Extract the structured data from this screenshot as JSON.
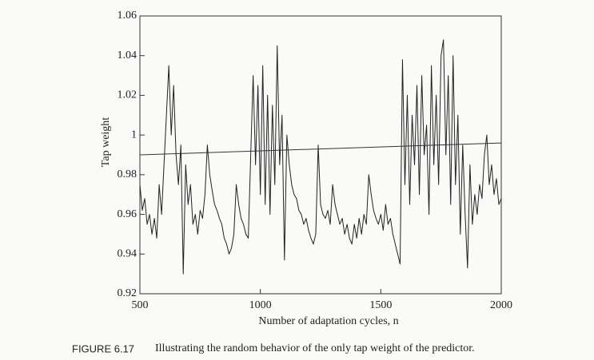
{
  "chart_data": {
    "type": "line",
    "xlabel": "Number of adaptation cycles, n",
    "ylabel": "Tap weight",
    "caption_label": "FIGURE 6.17",
    "caption": "Illustrating the random behavior of the only tap weight of the predictor.",
    "x": [
      500,
      510,
      520,
      530,
      540,
      550,
      560,
      570,
      580,
      590,
      600,
      610,
      620,
      630,
      640,
      650,
      660,
      670,
      680,
      690,
      700,
      710,
      720,
      730,
      740,
      750,
      760,
      770,
      780,
      790,
      800,
      810,
      820,
      830,
      840,
      850,
      860,
      870,
      880,
      890,
      900,
      910,
      920,
      930,
      940,
      950,
      960,
      970,
      980,
      990,
      1000,
      1010,
      1020,
      1030,
      1040,
      1050,
      1060,
      1070,
      1080,
      1090,
      1100,
      1110,
      1120,
      1130,
      1140,
      1150,
      1160,
      1170,
      1180,
      1190,
      1200,
      1210,
      1220,
      1230,
      1240,
      1250,
      1260,
      1270,
      1280,
      1290,
      1300,
      1310,
      1320,
      1330,
      1340,
      1350,
      1360,
      1370,
      1380,
      1390,
      1400,
      1410,
      1420,
      1430,
      1440,
      1450,
      1460,
      1470,
      1480,
      1490,
      1500,
      1510,
      1520,
      1530,
      1540,
      1550,
      1560,
      1570,
      1580,
      1590,
      1600,
      1610,
      1620,
      1630,
      1640,
      1650,
      1660,
      1670,
      1680,
      1690,
      1700,
      1710,
      1720,
      1730,
      1740,
      1750,
      1760,
      1770,
      1780,
      1790,
      1800,
      1810,
      1820,
      1830,
      1840,
      1850,
      1860,
      1870,
      1880,
      1890,
      1900,
      1910,
      1920,
      1930,
      1940,
      1950,
      1960,
      1970,
      1980,
      1990,
      2000
    ],
    "series": [
      {
        "color": "#222222",
        "values": [
          0.975,
          0.962,
          0.968,
          0.955,
          0.96,
          0.95,
          0.958,
          0.948,
          0.975,
          0.96,
          0.985,
          1.01,
          1.035,
          1.0,
          1.025,
          0.99,
          0.975,
          0.995,
          0.93,
          0.985,
          0.965,
          0.975,
          0.955,
          0.96,
          0.95,
          0.962,
          0.958,
          0.97,
          0.995,
          0.98,
          0.972,
          0.965,
          0.962,
          0.958,
          0.955,
          0.948,
          0.945,
          0.94,
          0.943,
          0.95,
          0.975,
          0.965,
          0.958,
          0.955,
          0.95,
          0.948,
          0.99,
          1.03,
          0.985,
          1.025,
          0.97,
          1.035,
          0.965,
          1.02,
          0.96,
          1.015,
          0.975,
          1.045,
          0.985,
          1.01,
          0.937,
          1.0,
          0.985,
          0.975,
          0.97,
          0.968,
          0.962,
          0.96,
          0.955,
          0.958,
          0.952,
          0.948,
          0.945,
          0.95,
          0.995,
          0.965,
          0.96,
          0.958,
          0.962,
          0.955,
          0.975,
          0.965,
          0.96,
          0.955,
          0.958,
          0.95,
          0.955,
          0.948,
          0.945,
          0.955,
          0.948,
          0.958,
          0.95,
          0.96,
          0.955,
          0.98,
          0.97,
          0.962,
          0.958,
          0.955,
          0.96,
          0.952,
          0.965,
          0.955,
          0.958,
          0.95,
          0.945,
          0.94,
          0.935,
          1.038,
          0.975,
          1.02,
          0.965,
          1.01,
          0.985,
          1.025,
          0.97,
          1.03,
          0.99,
          1.005,
          0.96,
          1.035,
          0.985,
          1.02,
          0.975,
          1.04,
          1.048,
          0.99,
          1.03,
          0.965,
          1.04,
          0.975,
          1.01,
          0.95,
          0.995,
          0.96,
          0.933,
          0.985,
          0.955,
          0.97,
          0.96,
          0.975,
          0.968,
          0.99,
          1.0,
          0.975,
          0.985,
          0.97,
          0.978,
          0.965,
          0.968
        ]
      },
      {
        "color": "#333333",
        "x": [
          500,
          2000
        ],
        "values": [
          0.99,
          0.996
        ]
      }
    ],
    "xlim": [
      500,
      2000
    ],
    "xticks": [
      500,
      1000,
      1500,
      2000
    ],
    "ylim": [
      0.92,
      1.06
    ],
    "yticks": [
      0.92,
      0.94,
      0.96,
      0.98,
      1,
      1.02,
      1.04,
      1.06
    ],
    "grid": false
  }
}
